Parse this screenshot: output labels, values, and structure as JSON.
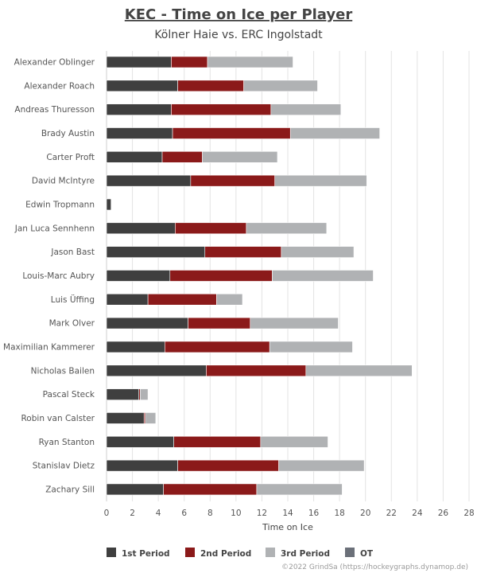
{
  "chart_data": {
    "type": "bar",
    "orientation": "horizontal",
    "stacked": true,
    "title": "KEC - Time on Ice per Player",
    "subtitle": "Kölner Haie vs. ERC Ingolstadt",
    "xlabel": "Time on Ice",
    "ylabel": "",
    "xlim": [
      0,
      28
    ],
    "xticks": [
      0,
      2,
      4,
      6,
      8,
      10,
      12,
      14,
      16,
      18,
      20,
      22,
      24,
      26,
      28
    ],
    "grid": true,
    "legend_position": "bottom-left",
    "categories": [
      "Alexander Oblinger",
      "Alexander Roach",
      "Andreas Thuresson",
      "Brady Austin",
      "Carter Proft",
      "David McIntyre",
      "Edwin Tropmann",
      "Jan Luca Sennhenn",
      "Jason Bast",
      "Louis-Marc Aubry",
      "Luis Üffing",
      "Mark Olver",
      "Maximilian Kammerer",
      "Nicholas Bailen",
      "Pascal Steck",
      "Robin van Calster",
      "Ryan Stanton",
      "Stanislav Dietz",
      "Zachary Sill"
    ],
    "series": [
      {
        "name": "1st Period",
        "color": "#3f3f3f",
        "values": [
          5.0,
          5.5,
          5.0,
          5.1,
          4.3,
          6.5,
          0.35,
          5.3,
          7.6,
          4.9,
          3.2,
          6.3,
          4.5,
          7.7,
          2.5,
          2.9,
          5.2,
          5.5,
          4.4
        ]
      },
      {
        "name": "2nd Period",
        "color": "#8b1a1a",
        "values": [
          2.8,
          5.1,
          7.7,
          9.1,
          3.1,
          6.5,
          0.0,
          5.5,
          5.9,
          7.9,
          5.3,
          4.8,
          8.1,
          7.7,
          0.1,
          0.1,
          6.7,
          7.8,
          7.2
        ]
      },
      {
        "name": "3rd Period",
        "color": "#b0b2b4",
        "values": [
          6.6,
          5.7,
          5.4,
          6.9,
          5.8,
          7.1,
          0.0,
          6.2,
          5.6,
          7.8,
          2.0,
          6.8,
          6.4,
          8.2,
          0.6,
          0.8,
          5.2,
          6.6,
          6.6
        ]
      },
      {
        "name": "OT",
        "color": "#6b7079",
        "values": [
          0,
          0,
          0,
          0,
          0,
          0,
          0,
          0,
          0,
          0,
          0,
          0,
          0,
          0,
          0,
          0,
          0,
          0,
          0
        ]
      }
    ],
    "credit": "©2022 GrindSa (https://hockeygraphs.dynamop.de)"
  }
}
